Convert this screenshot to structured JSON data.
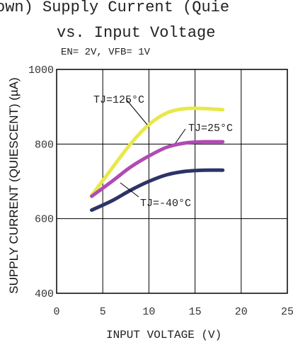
{
  "title_line1": "own) Supply Current (Quie",
  "title_line2": "vs. Input Voltage",
  "conditions": "EN= 2V, VFB= 1V",
  "chart_data": {
    "type": "line",
    "title": "Supply Current (Quiescent) vs. Input Voltage",
    "xlabel": "INPUT VOLTAGE (V)",
    "ylabel": "SUPPLY CURRENT (QUIESCENT) (µA)",
    "xlim": [
      0,
      25
    ],
    "ylim": [
      400,
      1000
    ],
    "xticks": [
      "0",
      "5",
      "10",
      "15",
      "20",
      "25"
    ],
    "yticks": [
      "400",
      "600",
      "800",
      "1000"
    ],
    "grid": true,
    "series": [
      {
        "name": "TJ=125°C",
        "color": "#e8e84a",
        "x": [
          3.8,
          6,
          8,
          10,
          12,
          14,
          16,
          18
        ],
        "y": [
          662,
          735,
          800,
          852,
          884,
          895,
          895,
          892
        ]
      },
      {
        "name": "TJ=25°C",
        "color": "#b04bb3",
        "x": [
          3.8,
          6,
          8,
          10,
          12,
          14,
          16,
          18
        ],
        "y": [
          660,
          700,
          738,
          768,
          792,
          803,
          806,
          806
        ]
      },
      {
        "name": "TJ=-40°C",
        "color": "#2e3366",
        "x": [
          3.8,
          6,
          8,
          10,
          12,
          14,
          16,
          18
        ],
        "y": [
          623,
          648,
          676,
          700,
          718,
          727,
          730,
          730
        ]
      }
    ],
    "annotations": [
      {
        "text": "TJ=125°C",
        "series": 0
      },
      {
        "text": "TJ=25°C",
        "series": 1
      },
      {
        "text": "TJ=-40°C",
        "series": 2
      }
    ]
  }
}
